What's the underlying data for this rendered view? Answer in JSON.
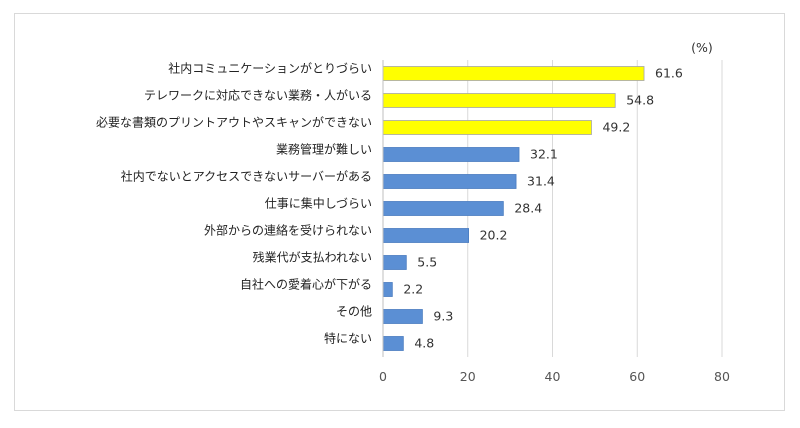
{
  "chart_data": {
    "type": "bar",
    "orientation": "horizontal",
    "unit_label": "(%)",
    "categories": [
      "社内コミュニケーションがとりづらい",
      "テレワークに対応できない業務・人がいる",
      "必要な書類のプリントアウトやスキャンができない",
      "業務管理が難しい",
      "社内でないとアクセスできないサーバーがある",
      "仕事に集中しづらい",
      "外部からの連絡を受けられない",
      "残業代が支払われない",
      "自社への愛着心が下がる",
      "その他",
      "特にない"
    ],
    "values": [
      61.6,
      54.8,
      49.2,
      32.1,
      31.4,
      28.4,
      20.2,
      5.5,
      2.2,
      9.3,
      4.8
    ],
    "value_labels": [
      "61.6",
      "54.8",
      "49.2",
      "32.1",
      "31.4",
      "28.4",
      "20.2",
      "5.5",
      "2.2",
      "9.3",
      "4.8"
    ],
    "highlight": [
      true,
      true,
      true,
      false,
      false,
      false,
      false,
      false,
      false,
      false,
      false
    ],
    "xlim": [
      0,
      80
    ],
    "xticks": [
      0,
      20,
      40,
      60,
      80
    ],
    "xtick_labels": [
      "0",
      "20",
      "40",
      "60",
      "80"
    ],
    "grid": true,
    "colors": {
      "highlight": "#ffff00",
      "highlight_border": "#a6a6a6",
      "normal": "#5b8fd4",
      "normal_border": "#4a7cc0",
      "grid": "#d9d9d9",
      "axis": "#bfbfbf"
    }
  }
}
